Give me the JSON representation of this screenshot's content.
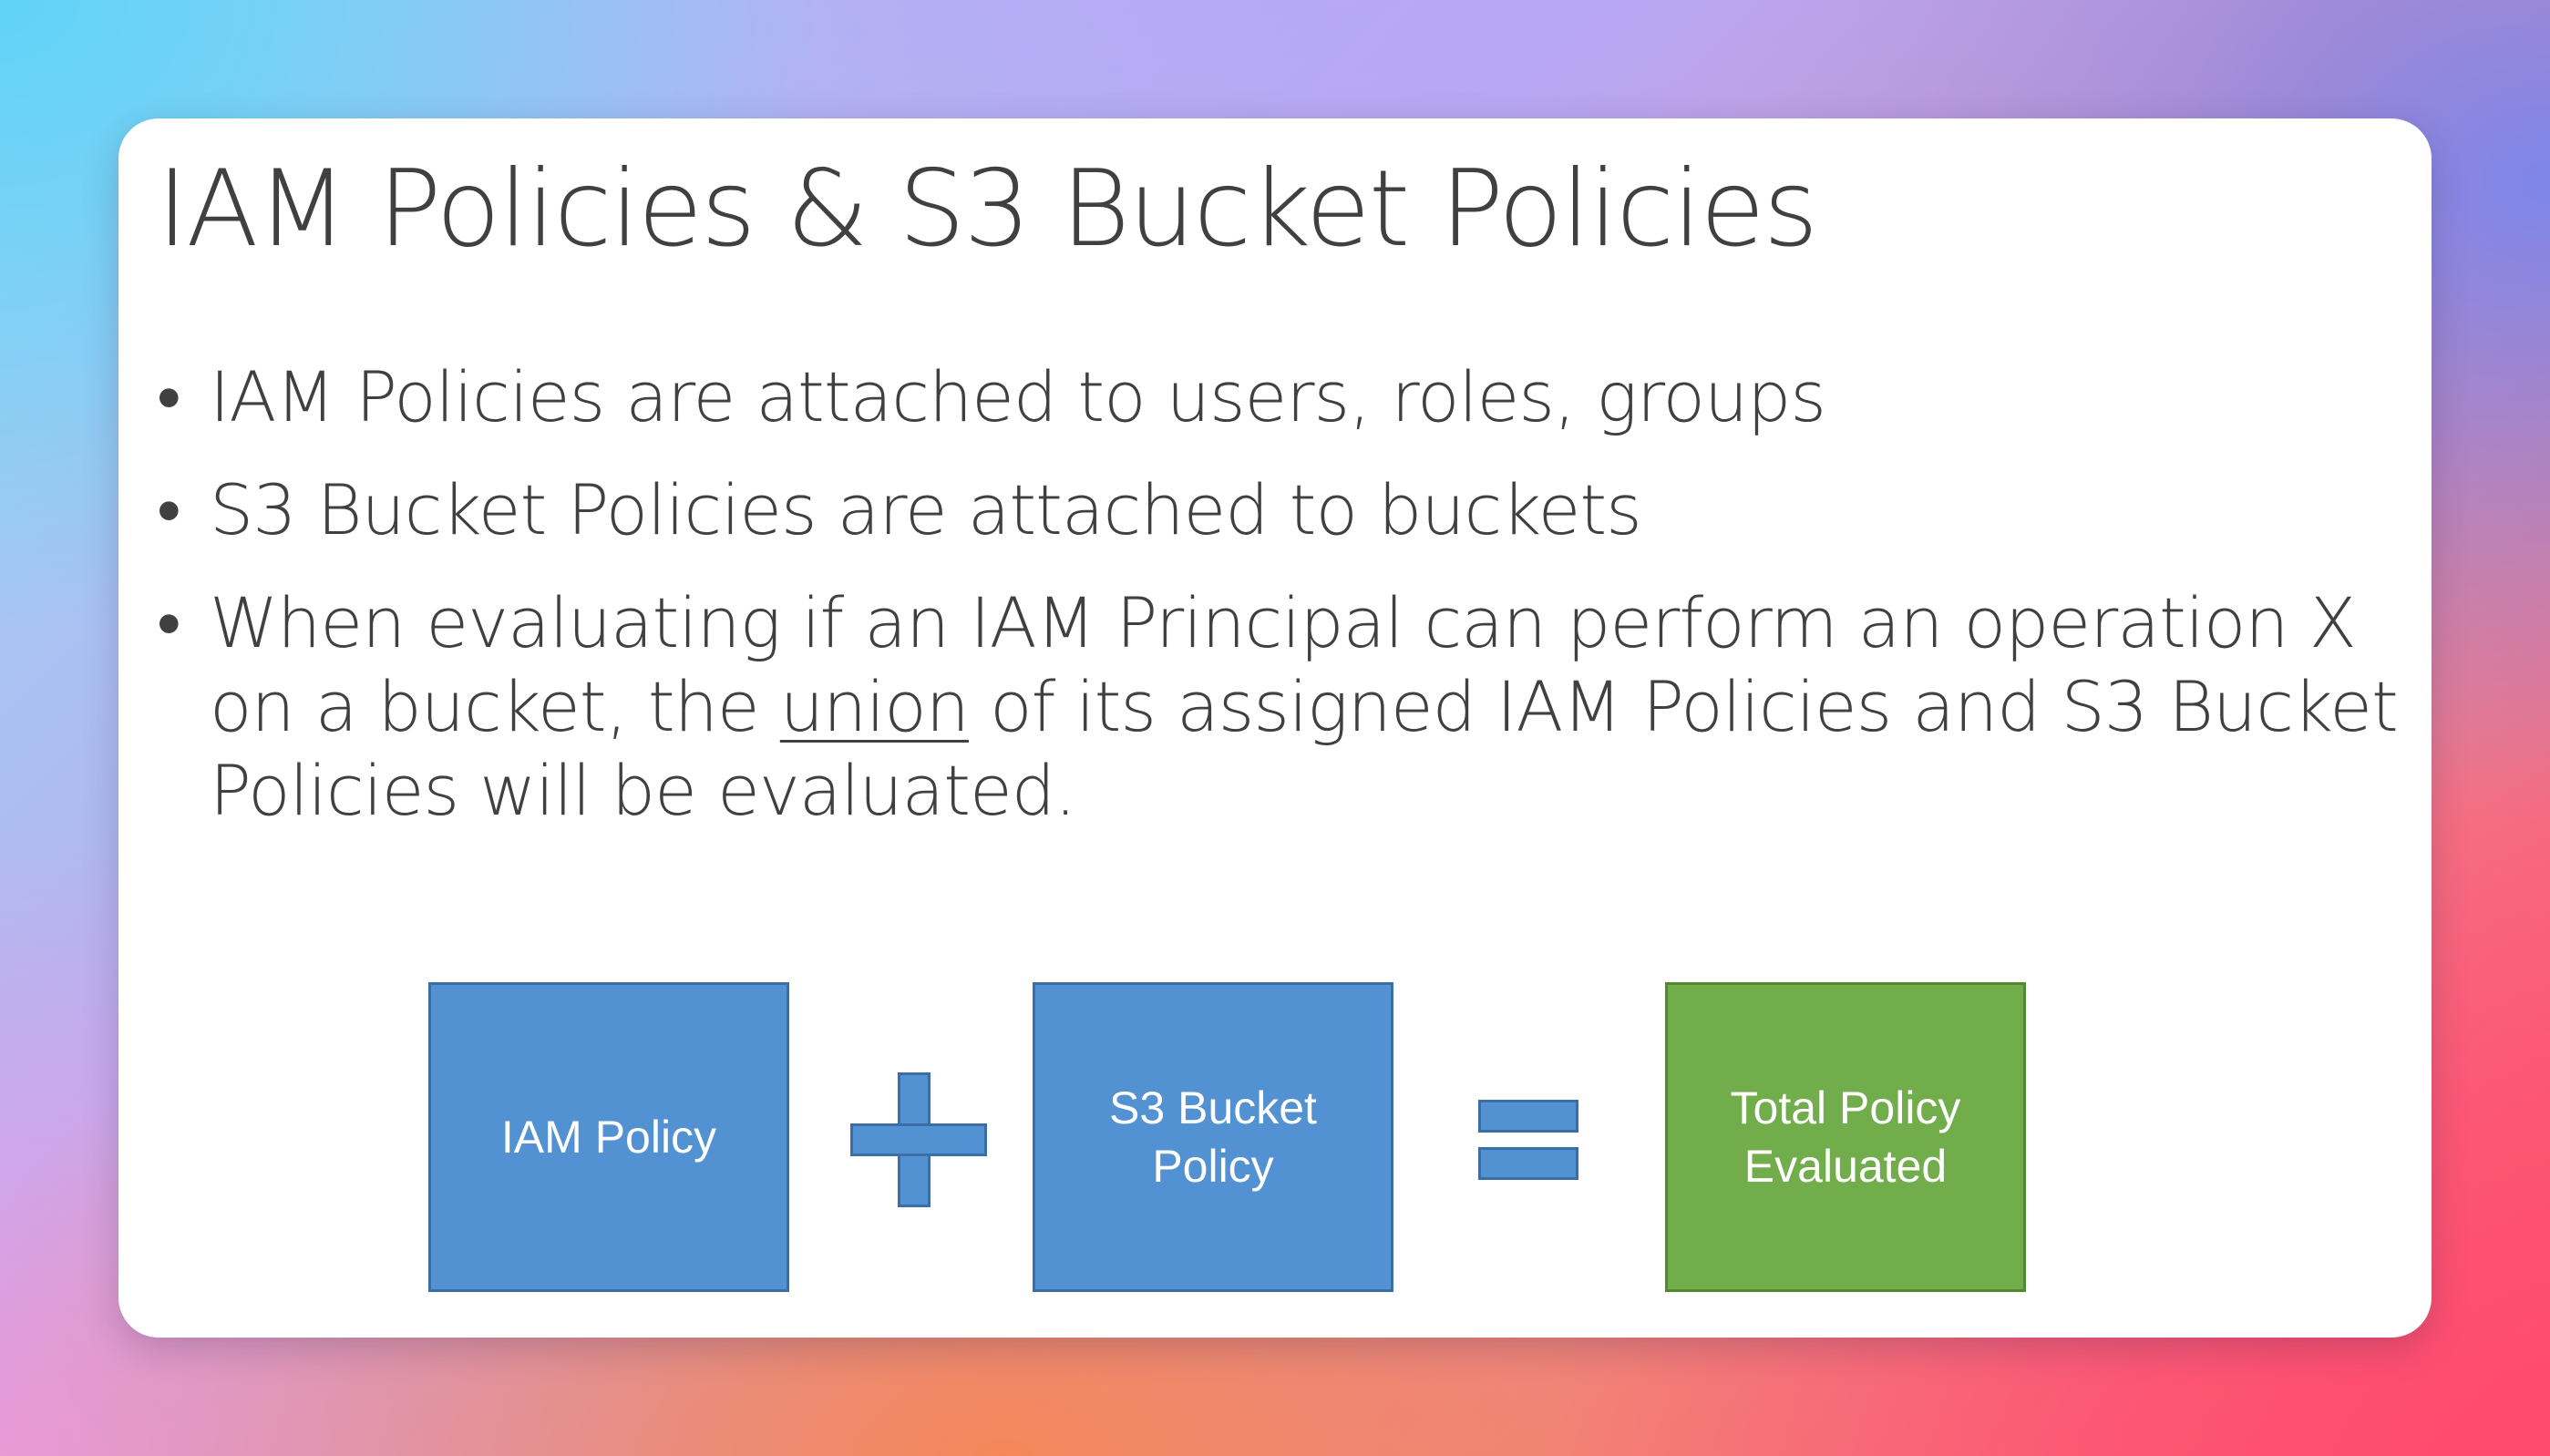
{
  "slide": {
    "title": "IAM Policies & S3 Bucket Policies",
    "bullets": {
      "b1": "IAM Policies are attached to users, roles, groups",
      "b2": "S3 Bucket Policies are attached to buckets",
      "b3_before": "When evaluating if an IAM Principal can perform an operation X on a bucket, the ",
      "b3_underlined": "union",
      "b3_after": " of its assigned IAM Policies and S3 Bucket Policies will be evaluated."
    }
  },
  "diagram": {
    "box_iam": "IAM Policy",
    "operator_plus": "plus-icon",
    "box_s3": "S3 Bucket Policy",
    "operator_equals": "equals-icon",
    "box_total": "Total Policy Evaluated",
    "colors": {
      "blue": "#5291d2",
      "blue_border": "#3b6ea6",
      "green": "#72ad4c",
      "green_border": "#4f8a32",
      "text": "#404040"
    }
  }
}
